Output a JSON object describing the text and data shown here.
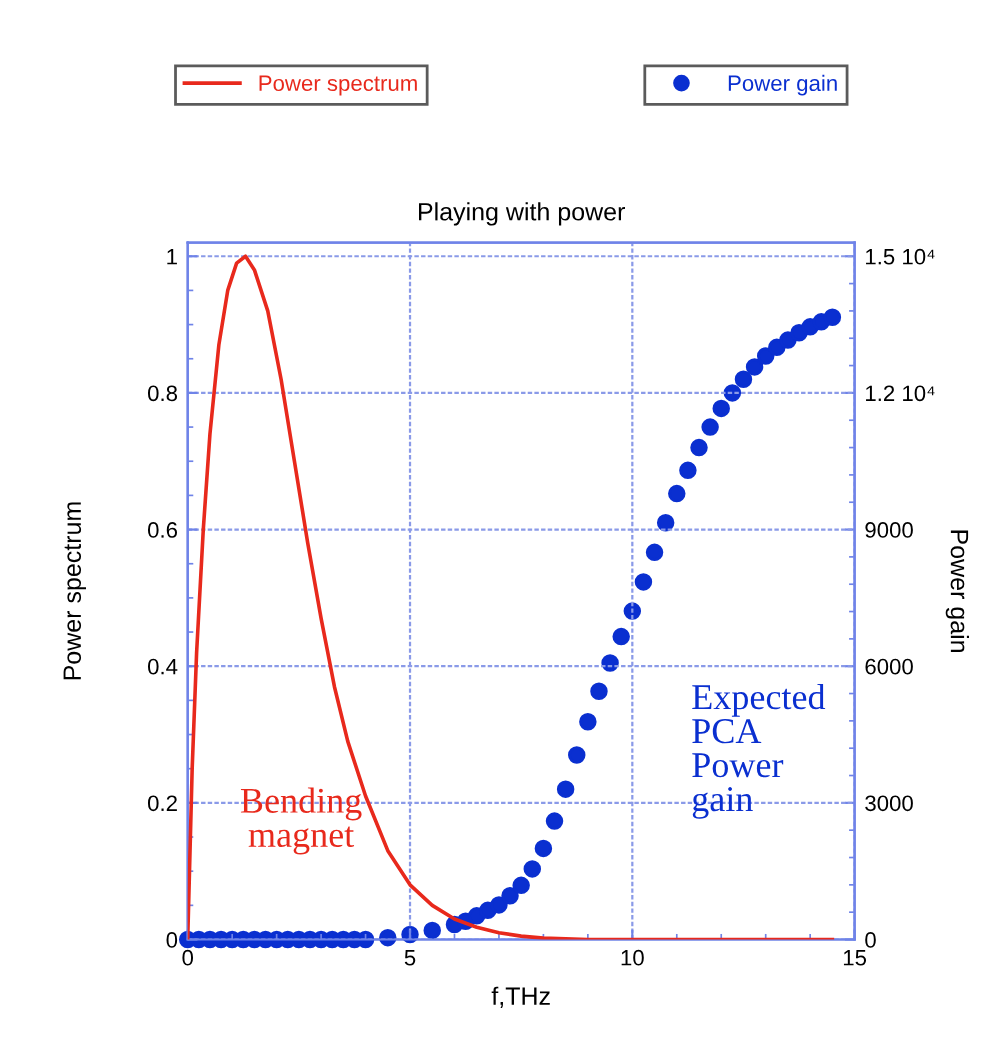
{
  "chart_data": {
    "type": "line",
    "title": "Playing with power",
    "xlabel": "f,THz",
    "ylabel": "Power spectrum",
    "y2label": "Power gain",
    "xlim": [
      0,
      15
    ],
    "xticks": [
      0,
      5,
      10,
      15
    ],
    "ylim": [
      0,
      1.02
    ],
    "yticks": [
      0,
      0.2,
      0.4,
      0.6,
      0.8,
      1
    ],
    "y2lim": [
      0,
      15300
    ],
    "y2ticks": [
      0,
      3000,
      6000,
      9000,
      {
        "value": 12000,
        "label": "1.2 10⁴"
      },
      {
        "value": 15000,
        "label": "1.5 10⁴"
      }
    ],
    "grid": true,
    "legend": "top",
    "series": [
      {
        "name": "Power spectrum",
        "color": "#e8291c",
        "marker": "none",
        "x": [
          0,
          0.1,
          0.2,
          0.35,
          0.5,
          0.7,
          0.9,
          1.1,
          1.3,
          1.5,
          1.8,
          2.1,
          2.4,
          2.7,
          3.0,
          3.3,
          3.6,
          4.0,
          4.5,
          5.0,
          5.5,
          6.0,
          6.5,
          7.0,
          7.5,
          8.0,
          9,
          10,
          11,
          12,
          13,
          14,
          14.5
        ],
        "values": [
          0,
          0.25,
          0.42,
          0.6,
          0.74,
          0.87,
          0.95,
          0.99,
          1.0,
          0.98,
          0.92,
          0.82,
          0.7,
          0.58,
          0.47,
          0.37,
          0.29,
          0.21,
          0.13,
          0.08,
          0.05,
          0.03,
          0.018,
          0.01,
          0.005,
          0.002,
          0,
          0,
          0,
          0,
          0,
          0,
          0
        ]
      },
      {
        "name": "Power gain",
        "type": "scatter",
        "axis": "y2",
        "color": "#0a2fd0",
        "marker": "circle",
        "x": [
          0,
          0.25,
          0.5,
          0.75,
          1,
          1.25,
          1.5,
          1.75,
          2,
          2.25,
          2.5,
          2.75,
          3,
          3.25,
          3.5,
          3.75,
          4,
          4.5,
          5,
          5.5,
          6,
          6.25,
          6.5,
          6.75,
          7,
          7.25,
          7.5,
          7.75,
          8,
          8.25,
          8.5,
          8.75,
          9,
          9.25,
          9.5,
          9.75,
          10,
          10.25,
          10.5,
          10.75,
          11,
          11.25,
          11.5,
          11.75,
          12,
          12.25,
          12.5,
          12.75,
          13,
          13.25,
          13.5,
          13.75,
          14,
          14.25,
          14.5
        ],
        "values": [
          0,
          0,
          0,
          0,
          0,
          0,
          0,
          0,
          0,
          0,
          0,
          0,
          0,
          0,
          0,
          0,
          0,
          40,
          110,
          200,
          330,
          400,
          520,
          640,
          760,
          960,
          1190,
          1550,
          2000,
          2600,
          3300,
          4050,
          4780,
          5450,
          6070,
          6650,
          7210,
          7850,
          8500,
          9150,
          9790,
          10300,
          10800,
          11250,
          11660,
          12000,
          12300,
          12570,
          12810,
          13000,
          13160,
          13320,
          13450,
          13560,
          13660
        ]
      }
    ],
    "annotations": [
      "Bending\nmagnet",
      "Expected\nPCA\nPower\ngain"
    ]
  }
}
